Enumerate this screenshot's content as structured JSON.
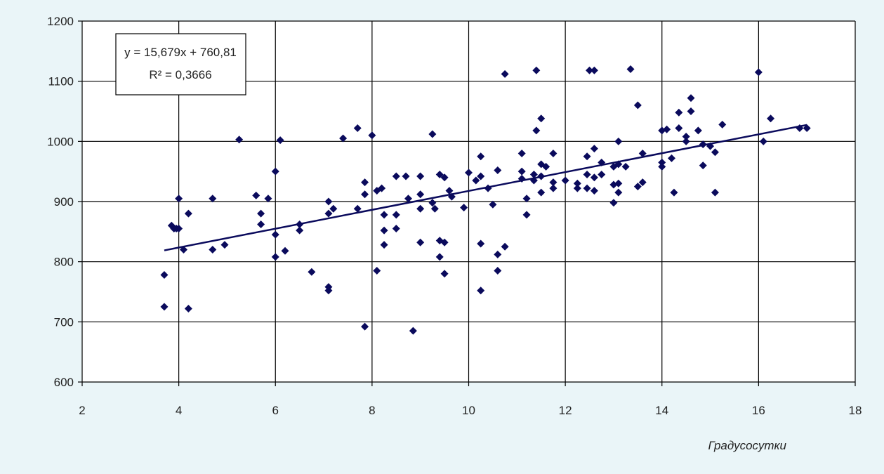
{
  "chart_data": {
    "type": "scatter",
    "title": "",
    "xlabel": "Градусосутки",
    "ylabel": "",
    "xlim": [
      2,
      18
    ],
    "ylim": [
      600,
      1200
    ],
    "xticks": [
      2,
      4,
      6,
      8,
      10,
      12,
      14,
      16,
      18
    ],
    "yticks": [
      600,
      700,
      800,
      900,
      1000,
      1100,
      1200
    ],
    "grid": true,
    "colors": {
      "points": "#0a0a5c",
      "trend": "#0a0a5c",
      "grid": "#000000",
      "plot_bg": "#ffffff",
      "page_bg": "#eaf5f8"
    },
    "trendline": {
      "slope": 15.679,
      "intercept": 760.81,
      "x_range": [
        3.7,
        17.0
      ],
      "equation_label": "y = 15,679x + 760,81",
      "r2_label": "R² = 0,3666",
      "label_placement": "top-left"
    },
    "points": [
      [
        3.7,
        778
      ],
      [
        3.7,
        725
      ],
      [
        3.85,
        860
      ],
      [
        3.9,
        855
      ],
      [
        3.95,
        855
      ],
      [
        4.0,
        905
      ],
      [
        4.0,
        855
      ],
      [
        4.1,
        820
      ],
      [
        4.2,
        880
      ],
      [
        4.2,
        722
      ],
      [
        4.7,
        905
      ],
      [
        4.7,
        820
      ],
      [
        4.95,
        828
      ],
      [
        5.25,
        1003
      ],
      [
        5.6,
        910
      ],
      [
        5.7,
        880
      ],
      [
        5.7,
        862
      ],
      [
        5.85,
        905
      ],
      [
        6.0,
        950
      ],
      [
        6.0,
        845
      ],
      [
        6.0,
        808
      ],
      [
        6.1,
        1002
      ],
      [
        6.2,
        818
      ],
      [
        6.5,
        862
      ],
      [
        6.5,
        852
      ],
      [
        6.75,
        783
      ],
      [
        7.1,
        900
      ],
      [
        7.1,
        880
      ],
      [
        7.1,
        758
      ],
      [
        7.1,
        752
      ],
      [
        7.2,
        888
      ],
      [
        7.4,
        1005
      ],
      [
        7.7,
        888
      ],
      [
        7.7,
        1022
      ],
      [
        7.85,
        932
      ],
      [
        7.85,
        912
      ],
      [
        7.85,
        692
      ],
      [
        8.0,
        1010
      ],
      [
        8.1,
        918
      ],
      [
        8.1,
        785
      ],
      [
        8.2,
        922
      ],
      [
        8.25,
        878
      ],
      [
        8.25,
        852
      ],
      [
        8.25,
        828
      ],
      [
        8.5,
        942
      ],
      [
        8.5,
        878
      ],
      [
        8.5,
        855
      ],
      [
        8.7,
        942
      ],
      [
        8.75,
        905
      ],
      [
        8.85,
        685
      ],
      [
        9.0,
        942
      ],
      [
        9.0,
        912
      ],
      [
        9.0,
        888
      ],
      [
        9.0,
        832
      ],
      [
        9.25,
        1012
      ],
      [
        9.25,
        898
      ],
      [
        9.3,
        888
      ],
      [
        9.4,
        945
      ],
      [
        9.4,
        835
      ],
      [
        9.4,
        808
      ],
      [
        9.5,
        940
      ],
      [
        9.5,
        832
      ],
      [
        9.5,
        780
      ],
      [
        9.6,
        918
      ],
      [
        9.65,
        908
      ],
      [
        9.9,
        890
      ],
      [
        10.0,
        948
      ],
      [
        10.15,
        935
      ],
      [
        10.25,
        942
      ],
      [
        10.25,
        975
      ],
      [
        10.25,
        830
      ],
      [
        10.25,
        752
      ],
      [
        10.4,
        922
      ],
      [
        10.5,
        895
      ],
      [
        10.6,
        952
      ],
      [
        10.6,
        812
      ],
      [
        10.6,
        785
      ],
      [
        10.75,
        1112
      ],
      [
        10.75,
        825
      ],
      [
        11.1,
        980
      ],
      [
        11.1,
        950
      ],
      [
        11.1,
        938
      ],
      [
        11.2,
        905
      ],
      [
        11.2,
        878
      ],
      [
        11.35,
        945
      ],
      [
        11.35,
        935
      ],
      [
        11.4,
        1118
      ],
      [
        11.4,
        1018
      ],
      [
        11.5,
        1038
      ],
      [
        11.5,
        962
      ],
      [
        11.5,
        942
      ],
      [
        11.5,
        915
      ],
      [
        11.6,
        958
      ],
      [
        11.75,
        980
      ],
      [
        11.75,
        932
      ],
      [
        11.75,
        922
      ],
      [
        12.0,
        935
      ],
      [
        12.25,
        930
      ],
      [
        12.25,
        922
      ],
      [
        12.45,
        975
      ],
      [
        12.45,
        945
      ],
      [
        12.45,
        922
      ],
      [
        12.5,
        1118
      ],
      [
        12.6,
        1118
      ],
      [
        12.6,
        988
      ],
      [
        12.6,
        940
      ],
      [
        12.6,
        918
      ],
      [
        12.75,
        965
      ],
      [
        12.75,
        945
      ],
      [
        13.0,
        958
      ],
      [
        13.0,
        928
      ],
      [
        13.0,
        898
      ],
      [
        13.1,
        1000
      ],
      [
        13.1,
        962
      ],
      [
        13.1,
        930
      ],
      [
        13.1,
        915
      ],
      [
        13.25,
        958
      ],
      [
        13.35,
        1120
      ],
      [
        13.5,
        1060
      ],
      [
        13.5,
        925
      ],
      [
        13.6,
        980
      ],
      [
        13.6,
        932
      ],
      [
        14.0,
        1018
      ],
      [
        14.0,
        965
      ],
      [
        14.0,
        958
      ],
      [
        14.1,
        1020
      ],
      [
        14.2,
        972
      ],
      [
        14.25,
        915
      ],
      [
        14.35,
        1048
      ],
      [
        14.35,
        1022
      ],
      [
        14.5,
        1000
      ],
      [
        14.5,
        1008
      ],
      [
        14.6,
        1072
      ],
      [
        14.6,
        1050
      ],
      [
        14.75,
        1018
      ],
      [
        14.85,
        995
      ],
      [
        14.85,
        960
      ],
      [
        15.0,
        992
      ],
      [
        15.1,
        982
      ],
      [
        15.1,
        915
      ],
      [
        15.25,
        1028
      ],
      [
        16.0,
        1115
      ],
      [
        16.1,
        1000
      ],
      [
        16.25,
        1038
      ],
      [
        16.85,
        1022
      ],
      [
        17.0,
        1022
      ]
    ]
  }
}
